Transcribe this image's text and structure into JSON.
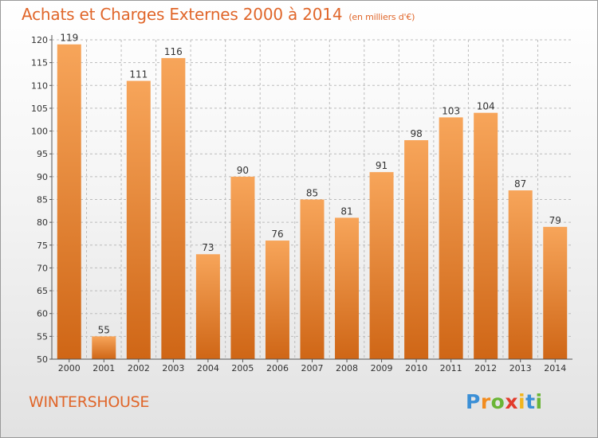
{
  "title": "Achats et Charges Externes 2000 à 2014",
  "unit_note": "(en milliers d'€)",
  "location": "WINTERSHOUSE",
  "brand": {
    "letters": [
      "P",
      "r",
      "o",
      "x",
      "i",
      "t",
      "i"
    ],
    "colors": [
      "#3b8fd6",
      "#f28c1e",
      "#6ab536",
      "#e23c2c",
      "#f2b51e",
      "#3b8fd6",
      "#6ab536"
    ]
  },
  "colors": {
    "bar_top": "#f7a55a",
    "bar_bottom": "#cf6616",
    "title": "#e0662a",
    "grid": "#bcbcbc"
  },
  "chart_data": {
    "type": "bar",
    "categories": [
      "2000",
      "2001",
      "2002",
      "2003",
      "2004",
      "2005",
      "2006",
      "2007",
      "2008",
      "2009",
      "2010",
      "2011",
      "2012",
      "2013",
      "2014"
    ],
    "values": [
      119,
      55,
      111,
      116,
      73,
      90,
      76,
      85,
      81,
      91,
      98,
      103,
      104,
      87,
      79
    ],
    "ylim": [
      50,
      120
    ],
    "yticks": [
      50,
      55,
      60,
      65,
      70,
      75,
      80,
      85,
      90,
      95,
      100,
      105,
      110,
      115,
      120
    ],
    "grid": true
  }
}
